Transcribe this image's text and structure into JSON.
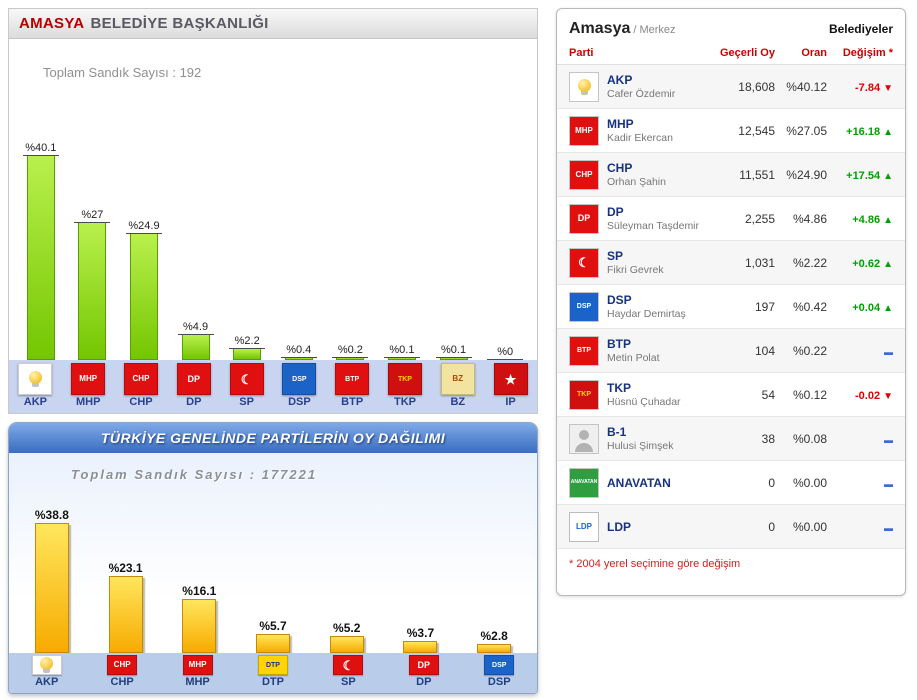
{
  "local_chart": {
    "region": "AMASYA",
    "title": "BELEDİYE BAŞKANLIĞI",
    "subtitle": "Toplam Sandık Sayısı : 192"
  },
  "national_chart": {
    "title": "TÜRKİYE GENELİNDE PARTİLERİN OY DAĞILIMI",
    "subtitle": "Toplam Sandık Sayısı : 177221"
  },
  "chart_data": [
    {
      "type": "bar",
      "title": "AMASYA BELEDİYE BAŞKANLIĞI",
      "subtitle": "Toplam Sandık Sayısı : 192",
      "categories": [
        "AKP",
        "MHP",
        "CHP",
        "DP",
        "SP",
        "DSP",
        "BTP",
        "TKP",
        "BZ",
        "IP"
      ],
      "values": [
        40.1,
        27,
        24.9,
        4.9,
        2.2,
        0.4,
        0.2,
        0.1,
        0.1,
        0
      ],
      "value_labels": [
        "%40.1",
        "%27",
        "%24.9",
        "%4.9",
        "%2.2",
        "%0.4",
        "%0.2",
        "%0.1",
        "%0.1",
        "%0"
      ],
      "ylim": [
        0,
        45
      ],
      "bar_color": "#8cd60a",
      "legend": "none",
      "grid": false
    },
    {
      "type": "bar",
      "title": "TÜRKİYE GENELİNDE PARTİLERİN OY DAĞILIMI",
      "subtitle": "Toplam Sandık Sayısı : 177221",
      "categories": [
        "AKP",
        "CHP",
        "MHP",
        "DTP",
        "SP",
        "DP",
        "DSP"
      ],
      "values": [
        38.8,
        23.1,
        16.1,
        5.7,
        5.2,
        3.7,
        2.8
      ],
      "value_labels": [
        "%38.8",
        "%23.1",
        "%16.1",
        "%5.7",
        "%5.2",
        "%3.7",
        "%2.8"
      ],
      "ylim": [
        0,
        45
      ],
      "bar_color": "#ffc800",
      "legend": "none",
      "grid": false
    }
  ],
  "results_panel": {
    "region": "Amasya",
    "district": "/ Merkez",
    "tab": "Belediyeler",
    "columns": {
      "parti": "Parti",
      "votes": "Geçerli Oy",
      "oran": "Oran",
      "change": "Değişim *"
    },
    "footnote": "* 2004 yerel seçimine göre değişim",
    "rows": [
      {
        "party": "AKP",
        "candidate": "Cafer Özdemir",
        "votes": "18,608",
        "oran": "%40.12",
        "change": "-7.84",
        "trend": "down"
      },
      {
        "party": "MHP",
        "candidate": "Kadir Ekercan",
        "votes": "12,545",
        "oran": "%27.05",
        "change": "+16.18",
        "trend": "up"
      },
      {
        "party": "CHP",
        "candidate": "Orhan Şahin",
        "votes": "11,551",
        "oran": "%24.90",
        "change": "+17.54",
        "trend": "up"
      },
      {
        "party": "DP",
        "candidate": "Süleyman Taşdemir",
        "votes": "2,255",
        "oran": "%4.86",
        "change": "+4.86",
        "trend": "up"
      },
      {
        "party": "SP",
        "candidate": "Fikri Gevrek",
        "votes": "1,031",
        "oran": "%2.22",
        "change": "+0.62",
        "trend": "up"
      },
      {
        "party": "DSP",
        "candidate": "Haydar Demirtaş",
        "votes": "197",
        "oran": "%0.42",
        "change": "+0.04",
        "trend": "up"
      },
      {
        "party": "BTP",
        "candidate": "Metin Polat",
        "votes": "104",
        "oran": "%0.22",
        "change": "",
        "trend": "flat"
      },
      {
        "party": "TKP",
        "candidate": "Hüsnü Çuhadar",
        "votes": "54",
        "oran": "%0.12",
        "change": "-0.02",
        "trend": "down"
      },
      {
        "party": "B-1",
        "candidate": "Hulusi Şimşek",
        "votes": "38",
        "oran": "%0.08",
        "change": "",
        "trend": "flat"
      },
      {
        "party": "ANAVATAN",
        "candidate": "",
        "votes": "0",
        "oran": "%0.00",
        "change": "",
        "trend": "flat"
      },
      {
        "party": "LDP",
        "candidate": "",
        "votes": "0",
        "oran": "%0.00",
        "change": "",
        "trend": "flat"
      }
    ]
  },
  "trend_icons": {
    "up": "▲",
    "down": "▼",
    "flat": "▬"
  },
  "party_icons": {
    "AKP": {
      "type": "bulb"
    },
    "MHP": {
      "bg": "#e01010",
      "fg": "#ffffff",
      "text": "MHP",
      "fs": 8
    },
    "CHP": {
      "bg": "#e01010",
      "fg": "#ffffff",
      "text": "CHP",
      "fs": 8
    },
    "DP": {
      "bg": "#e01010",
      "fg": "#ffffff",
      "text": "DP",
      "fs": 9
    },
    "SP": {
      "bg": "#e01010",
      "fg": "#ffffff",
      "text": "☾",
      "fs": 13
    },
    "DSP": {
      "bg": "#1c63c8",
      "fg": "#ffffff",
      "text": "DSP",
      "fs": 7
    },
    "BTP": {
      "bg": "#e01010",
      "fg": "#ffffff",
      "text": "BTP",
      "fs": 7
    },
    "TKP": {
      "bg": "#d01010",
      "fg": "#ffd400",
      "text": "TKP",
      "fs": 7
    },
    "BZ": {
      "bg": "#f2e3a0",
      "fg": "#a05000",
      "text": "BZ",
      "fs": 8,
      "border": "#c9b97a"
    },
    "IP": {
      "bg": "#d01010",
      "fg": "#ffffff",
      "text": "★",
      "fs": 13
    },
    "DTP": {
      "bg": "#ffd400",
      "fg": "#16337f",
      "text": "DTP",
      "fs": 7,
      "border": "#c8a800"
    },
    "ANAVATAN": {
      "bg": "#2f9e41",
      "fg": "#ffffff",
      "text": "ANAVATAN",
      "fs": 5
    },
    "LDP": {
      "bg": "#ffffff",
      "fg": "#1c63c8",
      "text": "LDP",
      "fs": 8,
      "border": "#bbbbbb"
    },
    "B-1": {
      "type": "person"
    }
  },
  "colors": {
    "accent_red": "#cc0000",
    "positive": "#00a000",
    "negative": "#e00000",
    "neutral": "#3a6bd6",
    "local_bar": "#8cd60a",
    "national_bar": "#ffc800"
  }
}
